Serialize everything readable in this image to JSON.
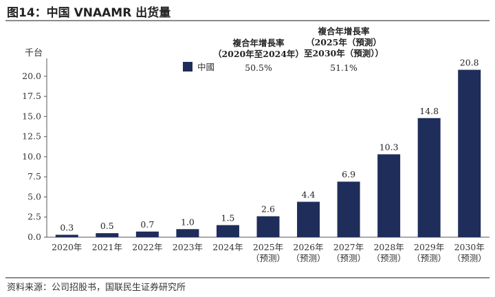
{
  "header": {
    "title": "图14：中国 VNAAMR 出货量"
  },
  "source": "资料来源：公司招股书，国联民生证券研究所",
  "chart_data": {
    "type": "bar",
    "ylabel": "千台",
    "ylim": [
      0,
      21.7
    ],
    "yticks": [
      "0.0",
      "2.5",
      "5.0",
      "7.5",
      "10.0",
      "12.5",
      "15.0",
      "17.5",
      "20.0"
    ],
    "categories": [
      [
        "2020年"
      ],
      [
        "2021年"
      ],
      [
        "2022年"
      ],
      [
        "2023年"
      ],
      [
        "2024年"
      ],
      [
        "2025年",
        "（预测）"
      ],
      [
        "2026年",
        "（预测）"
      ],
      [
        "2027年",
        "（预测）"
      ],
      [
        "2028年",
        "（预测）"
      ],
      [
        "2029年",
        "（预测）"
      ],
      [
        "2030年",
        "（预测）"
      ]
    ],
    "series": [
      {
        "name": "中國",
        "color": "#1f2d5a",
        "values": [
          0.3,
          0.5,
          0.7,
          1.0,
          1.5,
          2.6,
          4.4,
          6.9,
          10.3,
          14.8,
          20.8
        ],
        "labels": [
          "0.3",
          "0.5",
          "0.7",
          "1.0",
          "1.5",
          "2.6",
          "4.4",
          "6.9",
          "10.3",
          "14.8",
          "20.8"
        ]
      }
    ],
    "legend": "top-left",
    "cagr": {
      "col1": {
        "heading": [
          "複合年增長率",
          "（2020年至2024年）"
        ],
        "value": "50.5%"
      },
      "col2": {
        "heading": [
          "複合年增長率",
          "（2025年（預測）",
          "至2030年（預測））"
        ],
        "value": "51.1%"
      }
    }
  }
}
